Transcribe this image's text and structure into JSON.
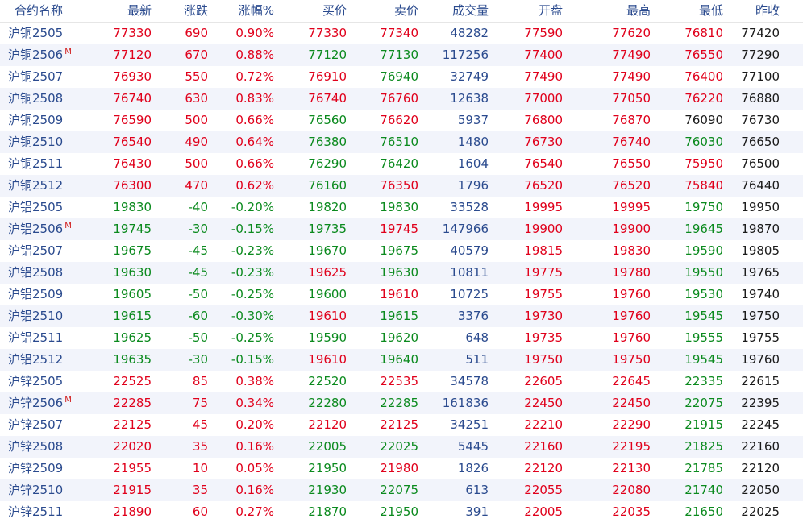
{
  "colors": {
    "up": "#e0001b",
    "down": "#0b8a1e",
    "flat": "#1a1a1a",
    "header": "#2a4a8e",
    "volume": "#2a4a8e",
    "alt_row": "#f2f4fb"
  },
  "headers": [
    "合约名称",
    "最新",
    "涨跌",
    "涨幅%",
    "买价",
    "卖价",
    "成交量",
    "开盘",
    "最高",
    "最低",
    "昨收"
  ],
  "rows": [
    {
      "cells": [
        "沪铜2505",
        "77330",
        "690",
        "0.90%",
        "77330",
        "77340",
        "48282",
        "77590",
        "77620",
        "76810",
        "77420"
      ],
      "mark": "",
      "c": [
        "up",
        "up",
        "up",
        "up",
        "up",
        "vol",
        "up",
        "up",
        "up",
        "flat"
      ]
    },
    {
      "cells": [
        "沪铜2506",
        "77120",
        "670",
        "0.88%",
        "77120",
        "77130",
        "117256",
        "77400",
        "77490",
        "76550",
        "77290"
      ],
      "mark": "M",
      "c": [
        "up",
        "up",
        "up",
        "down",
        "down",
        "vol",
        "up",
        "up",
        "up",
        "flat"
      ]
    },
    {
      "cells": [
        "沪铜2507",
        "76930",
        "550",
        "0.72%",
        "76910",
        "76940",
        "32749",
        "77490",
        "77490",
        "76400",
        "77100"
      ],
      "mark": "",
      "c": [
        "up",
        "up",
        "up",
        "up",
        "down",
        "vol",
        "up",
        "up",
        "up",
        "flat"
      ]
    },
    {
      "cells": [
        "沪铜2508",
        "76740",
        "630",
        "0.83%",
        "76740",
        "76760",
        "12638",
        "77000",
        "77050",
        "76220",
        "76880"
      ],
      "mark": "",
      "c": [
        "up",
        "up",
        "up",
        "up",
        "up",
        "vol",
        "up",
        "up",
        "up",
        "flat"
      ]
    },
    {
      "cells": [
        "沪铜2509",
        "76590",
        "500",
        "0.66%",
        "76560",
        "76620",
        "5937",
        "76800",
        "76870",
        "76090",
        "76730"
      ],
      "mark": "",
      "c": [
        "up",
        "up",
        "up",
        "down",
        "up",
        "vol",
        "up",
        "up",
        "flat",
        "flat"
      ]
    },
    {
      "cells": [
        "沪铜2510",
        "76540",
        "490",
        "0.64%",
        "76380",
        "76510",
        "1480",
        "76730",
        "76740",
        "76030",
        "76650"
      ],
      "mark": "",
      "c": [
        "up",
        "up",
        "up",
        "down",
        "down",
        "vol",
        "up",
        "up",
        "down",
        "flat"
      ]
    },
    {
      "cells": [
        "沪铜2511",
        "76430",
        "500",
        "0.66%",
        "76290",
        "76420",
        "1604",
        "76540",
        "76550",
        "75950",
        "76500"
      ],
      "mark": "",
      "c": [
        "up",
        "up",
        "up",
        "down",
        "down",
        "vol",
        "up",
        "up",
        "up",
        "flat"
      ]
    },
    {
      "cells": [
        "沪铜2512",
        "76300",
        "470",
        "0.62%",
        "76160",
        "76350",
        "1796",
        "76520",
        "76520",
        "75840",
        "76440"
      ],
      "mark": "",
      "c": [
        "up",
        "up",
        "up",
        "down",
        "up",
        "vol",
        "up",
        "up",
        "up",
        "flat"
      ]
    },
    {
      "cells": [
        "沪铝2505",
        "19830",
        "-40",
        "-0.20%",
        "19820",
        "19830",
        "33528",
        "19995",
        "19995",
        "19750",
        "19950"
      ],
      "mark": "",
      "c": [
        "down",
        "down",
        "down",
        "down",
        "down",
        "vol",
        "up",
        "up",
        "down",
        "flat"
      ]
    },
    {
      "cells": [
        "沪铝2506",
        "19745",
        "-30",
        "-0.15%",
        "19735",
        "19745",
        "147966",
        "19900",
        "19900",
        "19645",
        "19870"
      ],
      "mark": "M",
      "c": [
        "down",
        "down",
        "down",
        "down",
        "up",
        "vol",
        "up",
        "up",
        "down",
        "flat"
      ]
    },
    {
      "cells": [
        "沪铝2507",
        "19675",
        "-45",
        "-0.23%",
        "19670",
        "19675",
        "40579",
        "19815",
        "19830",
        "19590",
        "19805"
      ],
      "mark": "",
      "c": [
        "down",
        "down",
        "down",
        "down",
        "down",
        "vol",
        "up",
        "up",
        "down",
        "flat"
      ]
    },
    {
      "cells": [
        "沪铝2508",
        "19630",
        "-45",
        "-0.23%",
        "19625",
        "19630",
        "10811",
        "19775",
        "19780",
        "19550",
        "19765"
      ],
      "mark": "",
      "c": [
        "down",
        "down",
        "down",
        "up",
        "down",
        "vol",
        "up",
        "up",
        "down",
        "flat"
      ]
    },
    {
      "cells": [
        "沪铝2509",
        "19605",
        "-50",
        "-0.25%",
        "19600",
        "19610",
        "10725",
        "19755",
        "19760",
        "19530",
        "19740"
      ],
      "mark": "",
      "c": [
        "down",
        "down",
        "down",
        "down",
        "up",
        "vol",
        "up",
        "up",
        "down",
        "flat"
      ]
    },
    {
      "cells": [
        "沪铝2510",
        "19615",
        "-60",
        "-0.30%",
        "19610",
        "19615",
        "3376",
        "19730",
        "19760",
        "19545",
        "19750"
      ],
      "mark": "",
      "c": [
        "down",
        "down",
        "down",
        "up",
        "down",
        "vol",
        "up",
        "up",
        "down",
        "flat"
      ]
    },
    {
      "cells": [
        "沪铝2511",
        "19625",
        "-50",
        "-0.25%",
        "19590",
        "19620",
        "648",
        "19735",
        "19760",
        "19555",
        "19755"
      ],
      "mark": "",
      "c": [
        "down",
        "down",
        "down",
        "down",
        "down",
        "vol",
        "up",
        "up",
        "down",
        "flat"
      ]
    },
    {
      "cells": [
        "沪铝2512",
        "19635",
        "-30",
        "-0.15%",
        "19610",
        "19640",
        "511",
        "19750",
        "19750",
        "19545",
        "19760"
      ],
      "mark": "",
      "c": [
        "down",
        "down",
        "down",
        "up",
        "down",
        "vol",
        "up",
        "up",
        "down",
        "flat"
      ]
    },
    {
      "cells": [
        "沪锌2505",
        "22525",
        "85",
        "0.38%",
        "22520",
        "22535",
        "34578",
        "22605",
        "22645",
        "22335",
        "22615"
      ],
      "mark": "",
      "c": [
        "up",
        "up",
        "up",
        "down",
        "up",
        "vol",
        "up",
        "up",
        "down",
        "flat"
      ]
    },
    {
      "cells": [
        "沪锌2506",
        "22285",
        "75",
        "0.34%",
        "22280",
        "22285",
        "161836",
        "22450",
        "22450",
        "22075",
        "22395"
      ],
      "mark": "M",
      "c": [
        "up",
        "up",
        "up",
        "down",
        "down",
        "vol",
        "up",
        "up",
        "down",
        "flat"
      ]
    },
    {
      "cells": [
        "沪锌2507",
        "22125",
        "45",
        "0.20%",
        "22120",
        "22125",
        "34251",
        "22210",
        "22290",
        "21915",
        "22245"
      ],
      "mark": "",
      "c": [
        "up",
        "up",
        "up",
        "up",
        "up",
        "vol",
        "up",
        "up",
        "down",
        "flat"
      ]
    },
    {
      "cells": [
        "沪锌2508",
        "22020",
        "35",
        "0.16%",
        "22005",
        "22025",
        "5445",
        "22160",
        "22195",
        "21825",
        "22160"
      ],
      "mark": "",
      "c": [
        "up",
        "up",
        "up",
        "down",
        "down",
        "vol",
        "up",
        "up",
        "down",
        "flat"
      ]
    },
    {
      "cells": [
        "沪锌2509",
        "21955",
        "10",
        "0.05%",
        "21950",
        "21980",
        "1826",
        "22120",
        "22130",
        "21785",
        "22120"
      ],
      "mark": "",
      "c": [
        "up",
        "up",
        "up",
        "down",
        "up",
        "vol",
        "up",
        "up",
        "down",
        "flat"
      ]
    },
    {
      "cells": [
        "沪锌2510",
        "21915",
        "35",
        "0.16%",
        "21930",
        "22075",
        "613",
        "22055",
        "22080",
        "21740",
        "22050"
      ],
      "mark": "",
      "c": [
        "up",
        "up",
        "up",
        "down",
        "down",
        "vol",
        "up",
        "up",
        "down",
        "flat"
      ]
    },
    {
      "cells": [
        "沪锌2511",
        "21890",
        "60",
        "0.27%",
        "21870",
        "21950",
        "391",
        "22005",
        "22035",
        "21650",
        "22025"
      ],
      "mark": "",
      "c": [
        "up",
        "up",
        "up",
        "down",
        "down",
        "vol",
        "up",
        "up",
        "down",
        "flat"
      ]
    }
  ]
}
